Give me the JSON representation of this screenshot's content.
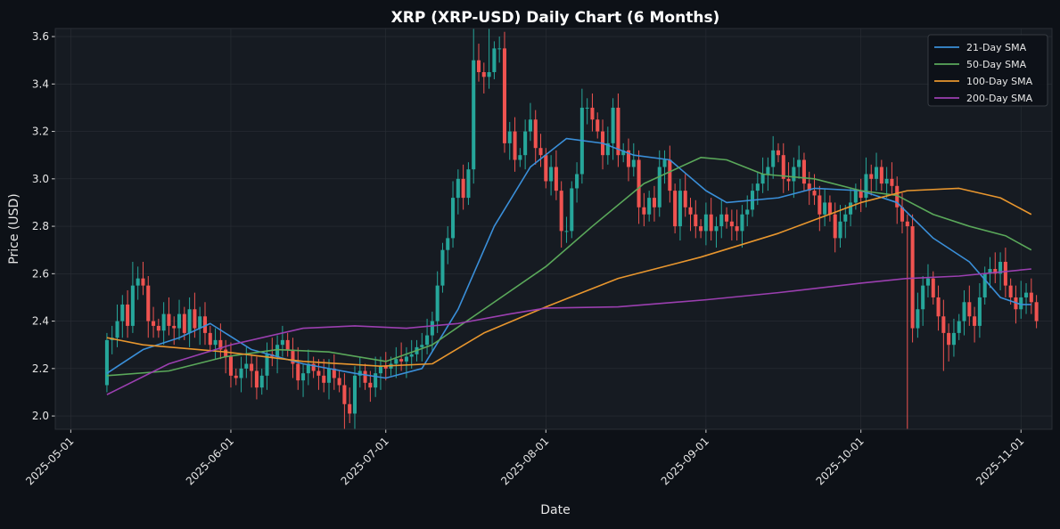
{
  "chart_data": {
    "type": "candlestick",
    "title": "XRP (XRP-USD) Daily Chart (6 Months)",
    "xlabel": "Date",
    "ylabel": "Price (USD)",
    "ylim": [
      1.944,
      3.634
    ],
    "xlim": [
      "2025-04-28",
      "2025-11-07"
    ],
    "yticks": [
      "2.0",
      "2.2",
      "2.4",
      "2.6",
      "2.8",
      "3.0",
      "3.2",
      "3.4",
      "3.6"
    ],
    "xticks": [
      "2025-05-01",
      "2025-06-01",
      "2025-07-01",
      "2025-08-01",
      "2025-09-01",
      "2025-10-01",
      "2025-11-01"
    ],
    "grid": true,
    "legend_position": "top-right",
    "colors": {
      "up": "#26a69a",
      "down": "#ef5350",
      "background": "#0d1117",
      "plot_background": "#161b22"
    },
    "candles": {
      "start_date": "2025-05-08",
      "first_open": 2.13,
      "close": [
        2.32,
        2.33,
        2.4,
        2.47,
        2.38,
        2.55,
        2.58,
        2.55,
        2.4,
        2.38,
        2.36,
        2.43,
        2.38,
        2.37,
        2.43,
        2.35,
        2.45,
        2.37,
        2.42,
        2.35,
        2.3,
        2.32,
        2.28,
        2.25,
        2.17,
        2.16,
        2.2,
        2.22,
        2.19,
        2.12,
        2.17,
        2.26,
        2.25,
        2.3,
        2.32,
        2.28,
        2.22,
        2.15,
        2.18,
        2.22,
        2.19,
        2.17,
        2.14,
        2.2,
        2.16,
        2.13,
        2.05,
        2.01,
        2.17,
        2.19,
        2.14,
        2.12,
        2.18,
        2.21,
        2.2,
        2.22,
        2.24,
        2.23,
        2.25,
        2.26,
        2.29,
        2.3,
        2.34,
        2.4,
        2.55,
        2.7,
        2.75,
        2.92,
        3.0,
        2.92,
        3.04,
        3.5,
        3.45,
        3.43,
        3.45,
        3.55,
        3.55,
        3.15,
        3.2,
        3.08,
        3.1,
        3.2,
        3.25,
        3.13,
        3.1,
        2.99,
        3.05,
        2.95,
        2.78,
        2.78,
        2.96,
        3.02,
        3.3,
        3.3,
        3.25,
        3.2,
        3.1,
        3.15,
        3.3,
        3.1,
        3.12,
        3.05,
        3.08,
        2.88,
        2.85,
        2.92,
        2.88,
        3.05,
        3.08,
        2.95,
        2.8,
        2.95,
        2.88,
        2.85,
        2.8,
        2.78,
        2.85,
        2.78,
        2.8,
        2.85,
        2.82,
        2.8,
        2.78,
        2.85,
        2.87,
        2.95,
        2.98,
        3.02,
        3.05,
        3.12,
        3.1,
        3.0,
        2.99,
        3.05,
        3.08,
        2.98,
        2.95,
        2.93,
        2.85,
        2.9,
        2.85,
        2.75,
        2.82,
        2.85,
        2.9,
        2.95,
        2.92,
        3.02,
        3.0,
        3.05,
        2.98,
        3.0,
        2.97,
        2.88,
        2.82,
        2.8,
        2.37,
        2.45,
        2.55,
        2.58,
        2.5,
        2.42,
        2.35,
        2.3,
        2.35,
        2.4,
        2.48,
        2.42,
        2.38,
        2.5,
        2.6,
        2.62,
        2.6,
        2.65,
        2.55,
        2.5,
        2.45,
        2.5,
        2.52,
        2.48,
        2.4
      ],
      "notable_wicks": [
        {
          "date": "2025-05-13",
          "high": 2.65
        },
        {
          "date": "2025-06-23",
          "low": 1.94
        },
        {
          "date": "2025-07-18",
          "high": 3.65
        },
        {
          "date": "2025-07-21",
          "high": 3.65
        },
        {
          "date": "2025-08-08",
          "high": 3.38
        },
        {
          "date": "2025-10-10",
          "low": 1.94
        },
        {
          "date": "2025-10-17",
          "low": 2.19
        }
      ]
    },
    "series": [
      {
        "name": "21-Day SMA",
        "color": "#3a8fd9",
        "points": [
          [
            "2025-05-08",
            2.18
          ],
          [
            "2025-05-15",
            2.28
          ],
          [
            "2025-05-22",
            2.33
          ],
          [
            "2025-05-28",
            2.39
          ],
          [
            "2025-06-05",
            2.28
          ],
          [
            "2025-06-15",
            2.22
          ],
          [
            "2025-06-25",
            2.18
          ],
          [
            "2025-07-01",
            2.16
          ],
          [
            "2025-07-08",
            2.2
          ],
          [
            "2025-07-15",
            2.45
          ],
          [
            "2025-07-22",
            2.8
          ],
          [
            "2025-07-29",
            3.05
          ],
          [
            "2025-08-05",
            3.17
          ],
          [
            "2025-08-12",
            3.15
          ],
          [
            "2025-08-18",
            3.1
          ],
          [
            "2025-08-25",
            3.08
          ],
          [
            "2025-09-01",
            2.95
          ],
          [
            "2025-09-05",
            2.9
          ],
          [
            "2025-09-15",
            2.92
          ],
          [
            "2025-09-22",
            2.96
          ],
          [
            "2025-10-01",
            2.95
          ],
          [
            "2025-10-08",
            2.9
          ],
          [
            "2025-10-15",
            2.75
          ],
          [
            "2025-10-22",
            2.65
          ],
          [
            "2025-10-28",
            2.5
          ],
          [
            "2025-11-01",
            2.47
          ],
          [
            "2025-11-03",
            2.47
          ]
        ]
      },
      {
        "name": "50-Day SMA",
        "color": "#5aa85a",
        "points": [
          [
            "2025-05-08",
            2.17
          ],
          [
            "2025-05-20",
            2.19
          ],
          [
            "2025-05-31",
            2.25
          ],
          [
            "2025-06-10",
            2.28
          ],
          [
            "2025-06-20",
            2.27
          ],
          [
            "2025-07-01",
            2.23
          ],
          [
            "2025-07-10",
            2.3
          ],
          [
            "2025-07-20",
            2.45
          ],
          [
            "2025-08-01",
            2.63
          ],
          [
            "2025-08-10",
            2.8
          ],
          [
            "2025-08-20",
            2.98
          ],
          [
            "2025-08-31",
            3.09
          ],
          [
            "2025-09-05",
            3.08
          ],
          [
            "2025-09-12",
            3.02
          ],
          [
            "2025-09-22",
            3.0
          ],
          [
            "2025-10-01",
            2.95
          ],
          [
            "2025-10-08",
            2.93
          ],
          [
            "2025-10-15",
            2.85
          ],
          [
            "2025-10-22",
            2.8
          ],
          [
            "2025-10-29",
            2.76
          ],
          [
            "2025-11-03",
            2.7
          ]
        ]
      },
      {
        "name": "100-Day SMA",
        "color": "#e8962e",
        "points": [
          [
            "2025-05-08",
            2.33
          ],
          [
            "2025-05-15",
            2.3
          ],
          [
            "2025-05-31",
            2.27
          ],
          [
            "2025-06-15",
            2.23
          ],
          [
            "2025-06-30",
            2.21
          ],
          [
            "2025-07-10",
            2.22
          ],
          [
            "2025-07-20",
            2.35
          ],
          [
            "2025-08-01",
            2.46
          ],
          [
            "2025-08-15",
            2.58
          ],
          [
            "2025-08-31",
            2.67
          ],
          [
            "2025-09-15",
            2.77
          ],
          [
            "2025-10-01",
            2.9
          ],
          [
            "2025-10-10",
            2.95
          ],
          [
            "2025-10-20",
            2.96
          ],
          [
            "2025-10-28",
            2.92
          ],
          [
            "2025-11-03",
            2.85
          ]
        ]
      },
      {
        "name": "200-Day SMA",
        "color": "#9b3fb0",
        "points": [
          [
            "2025-05-08",
            2.09
          ],
          [
            "2025-05-20",
            2.22
          ],
          [
            "2025-06-01",
            2.3
          ],
          [
            "2025-06-15",
            2.37
          ],
          [
            "2025-06-25",
            2.38
          ],
          [
            "2025-07-05",
            2.37
          ],
          [
            "2025-07-15",
            2.39
          ],
          [
            "2025-07-25",
            2.43
          ],
          [
            "2025-08-01",
            2.455
          ],
          [
            "2025-08-15",
            2.46
          ],
          [
            "2025-09-01",
            2.49
          ],
          [
            "2025-09-15",
            2.52
          ],
          [
            "2025-10-01",
            2.56
          ],
          [
            "2025-10-10",
            2.58
          ],
          [
            "2025-10-20",
            2.59
          ],
          [
            "2025-11-03",
            2.62
          ]
        ]
      }
    ]
  }
}
